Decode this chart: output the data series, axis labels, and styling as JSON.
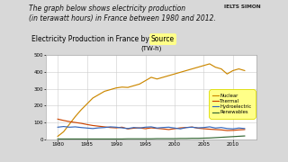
{
  "title_part1": "Electricity Production in France by ",
  "title_source": "Source",
  "title_part2": "(TW-h)",
  "header_text": "The graph below shows electricity production\n(in terawatt hours) in France between 1980 and 2012.",
  "ielts_simon_text": "IELTS SIMON",
  "xlim": [
    1978,
    2014
  ],
  "ylim": [
    0,
    500
  ],
  "yticks": [
    0,
    100,
    200,
    300,
    400,
    500
  ],
  "xticks": [
    1980,
    1985,
    1990,
    1995,
    2000,
    2005,
    2010
  ],
  "years": [
    1980,
    1981,
    1982,
    1983,
    1984,
    1985,
    1986,
    1987,
    1988,
    1989,
    1990,
    1991,
    1992,
    1993,
    1994,
    1995,
    1996,
    1997,
    1998,
    1999,
    2000,
    2001,
    2002,
    2003,
    2004,
    2005,
    2006,
    2007,
    2008,
    2009,
    2010,
    2011,
    2012
  ],
  "thermal": [
    120,
    112,
    105,
    100,
    95,
    88,
    82,
    78,
    74,
    70,
    68,
    72,
    62,
    66,
    68,
    63,
    68,
    65,
    62,
    58,
    63,
    68,
    70,
    73,
    66,
    63,
    60,
    58,
    56,
    52,
    53,
    56,
    58
  ],
  "nuclear": [
    18,
    45,
    90,
    135,
    175,
    210,
    245,
    265,
    285,
    295,
    305,
    310,
    308,
    318,
    328,
    348,
    368,
    358,
    368,
    378,
    388,
    398,
    408,
    418,
    428,
    438,
    448,
    428,
    418,
    388,
    408,
    418,
    408
  ],
  "hydroelectric": [
    72,
    76,
    72,
    74,
    70,
    67,
    64,
    68,
    70,
    74,
    72,
    68,
    64,
    70,
    67,
    72,
    74,
    67,
    70,
    72,
    67,
    62,
    70,
    72,
    68,
    70,
    74,
    67,
    70,
    64,
    62,
    67,
    64
  ],
  "renewables": [
    2,
    2,
    2,
    2,
    2,
    2,
    2,
    2,
    2,
    2,
    2,
    2,
    3,
    3,
    3,
    3,
    3,
    4,
    4,
    4,
    4,
    5,
    5,
    6,
    6,
    7,
    8,
    10,
    12,
    14,
    16,
    18,
    20
  ],
  "thermal_color": "#cc4400",
  "nuclear_color": "#cc8800",
  "hydroelectric_color": "#3366bb",
  "renewables_color": "#336633",
  "legend_bg": "#ffff88",
  "fig_bg": "#d8d8d8",
  "plot_bg": "#ffffff",
  "grid_color": "#cccccc",
  "title_fontsize": 5.5,
  "header_fontsize": 5.5,
  "tick_fontsize": 4,
  "legend_fontsize": 3.8,
  "line_width": 0.85
}
